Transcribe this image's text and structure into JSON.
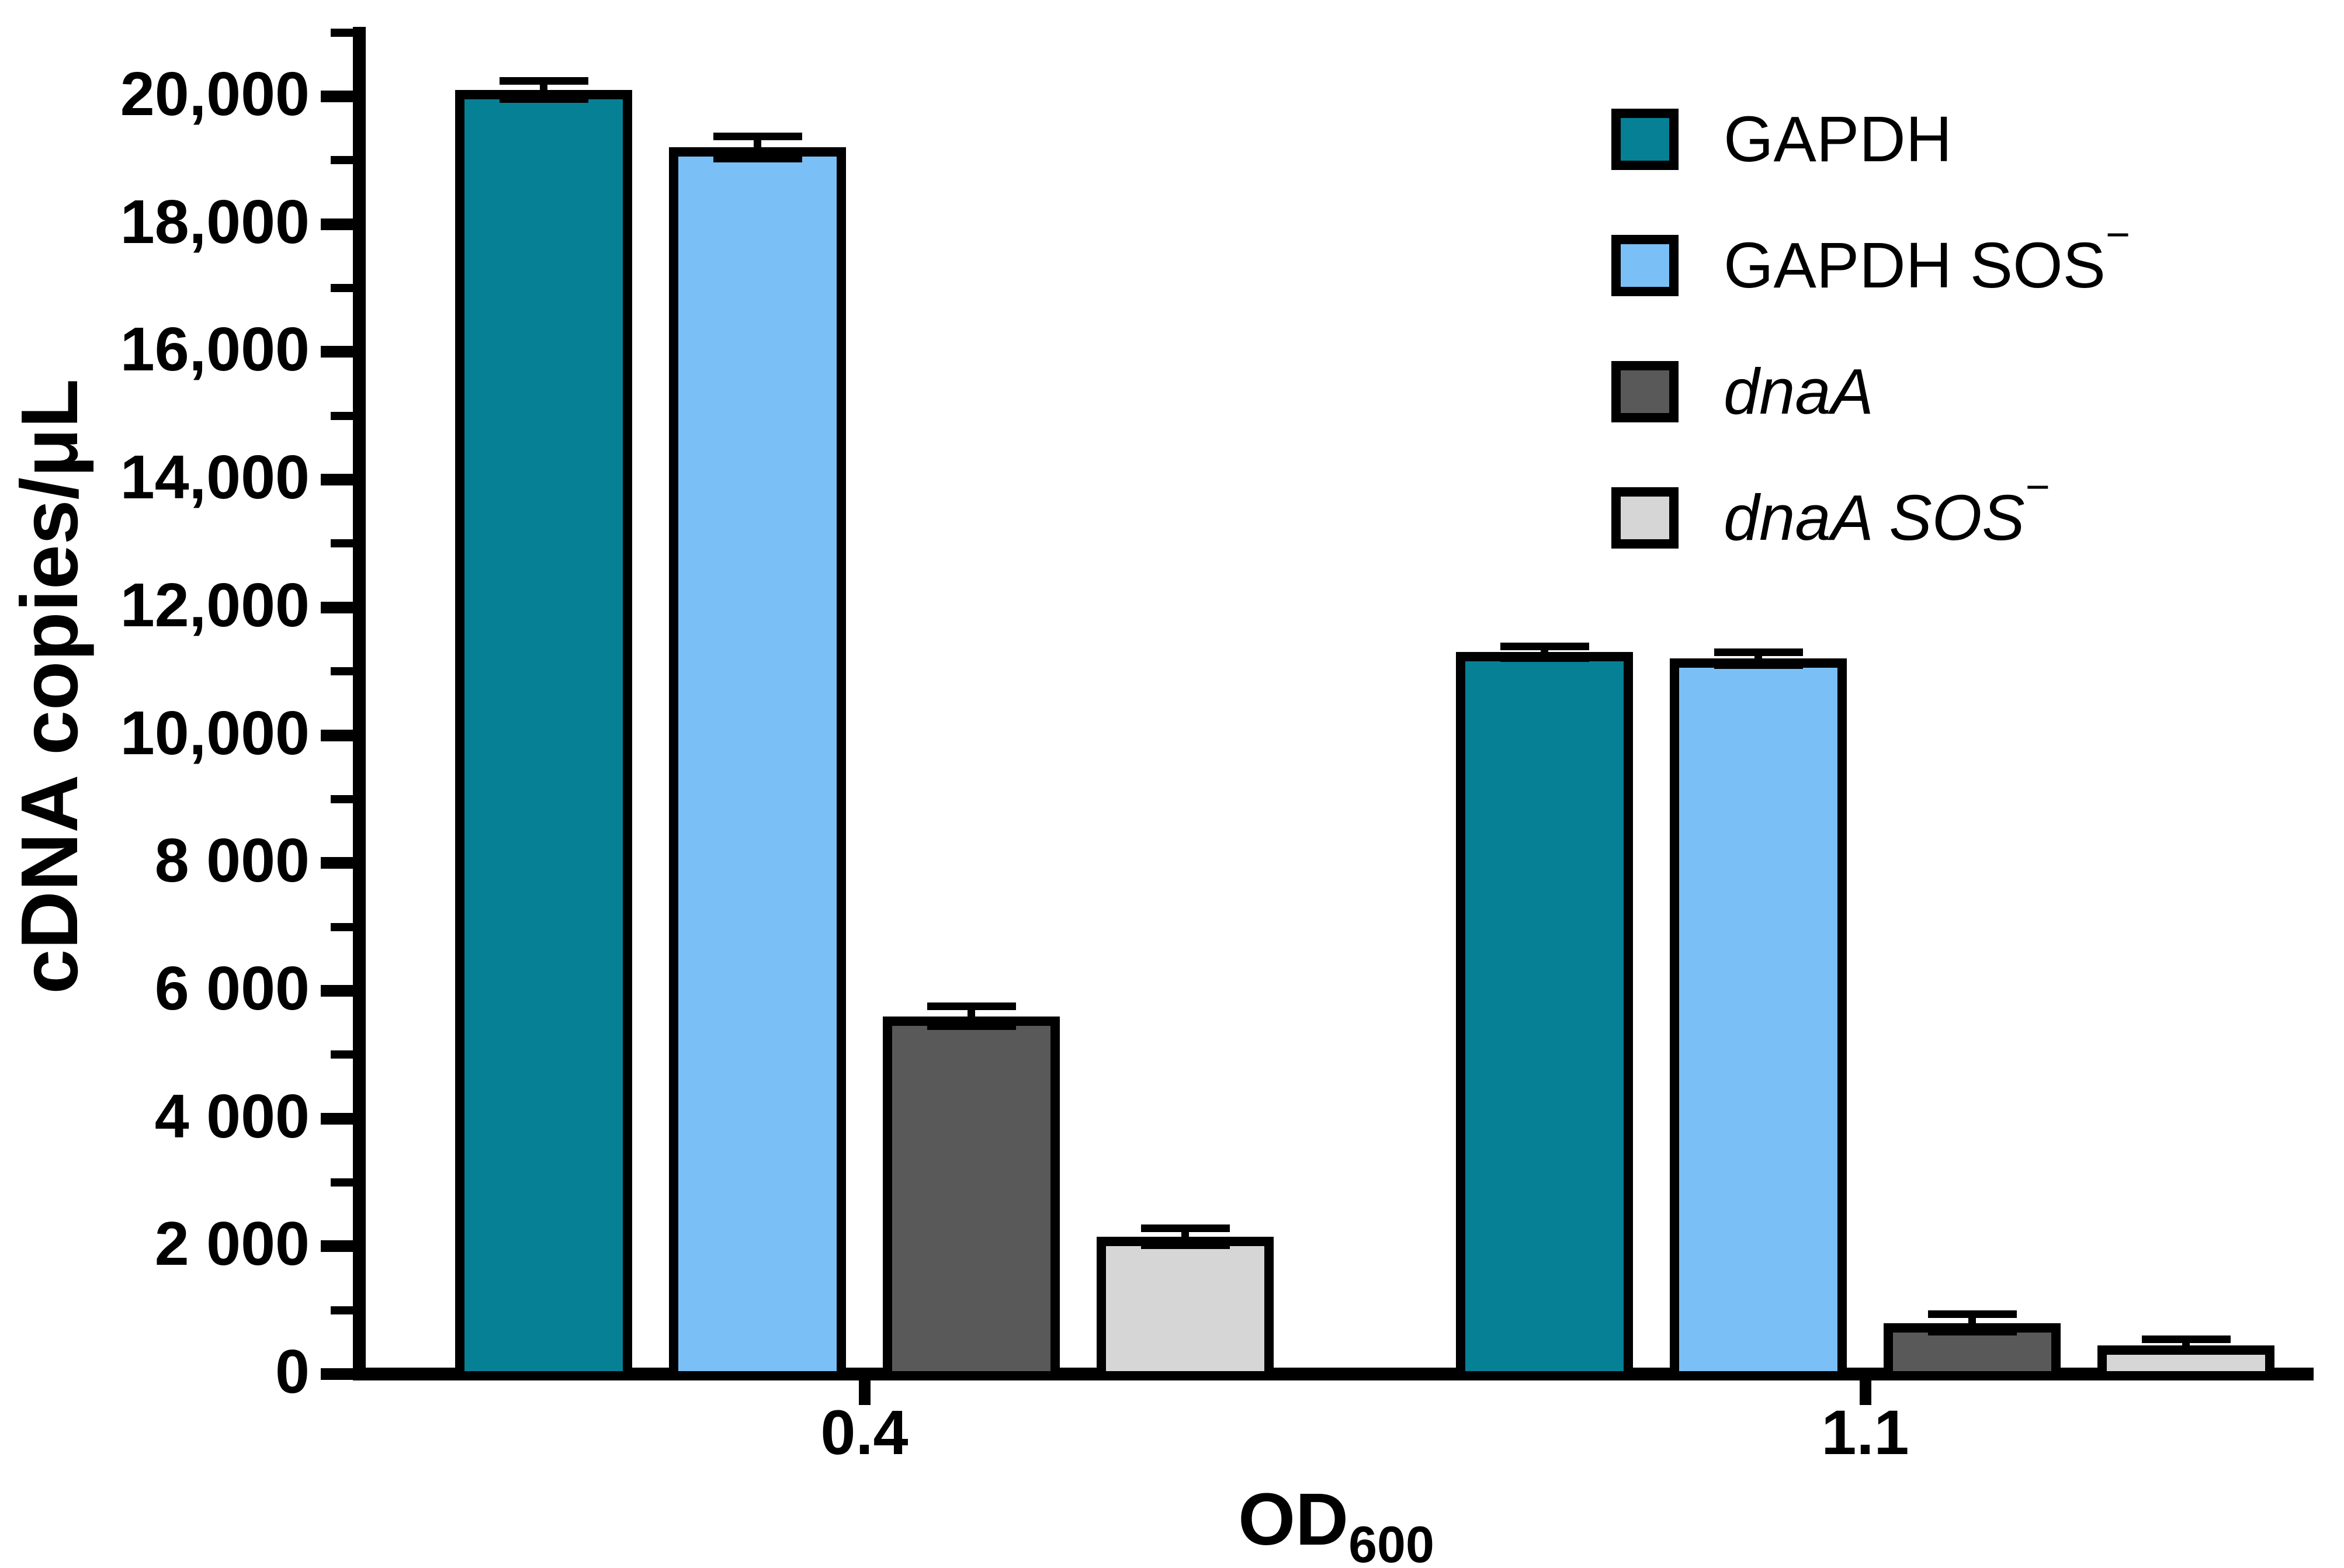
{
  "figure": {
    "background_color": "#FFFFFF"
  },
  "chart_data": {
    "type": "bar",
    "title": "",
    "ylabel": "cDNA copies/μL",
    "xlabel": "OD600",
    "xlabel_base": "OD",
    "xlabel_subscript": "600",
    "categories": [
      "0.4",
      "1.1"
    ],
    "series": [
      {
        "name": "GAPDH",
        "label": "GAPDH",
        "label_superscript": "",
        "italic": false,
        "color": "#068095",
        "values": [
          20100,
          11300
        ],
        "errors": [
          200,
          150
        ]
      },
      {
        "name": "GAPDH SOS−",
        "label": "GAPDH SOS",
        "label_superscript": "−",
        "italic": false,
        "color": "#7AC0F6",
        "values": [
          19200,
          11200
        ],
        "errors": [
          230,
          160
        ]
      },
      {
        "name": "dnaA",
        "label": "dnaA",
        "label_superscript": "",
        "italic": true,
        "color": "#595959",
        "values": [
          5600,
          800
        ],
        "errors": [
          215,
          200
        ]
      },
      {
        "name": "dnaA SOS−",
        "label": "dnaA SOS",
        "label_superscript": "−",
        "italic": true,
        "color": "#D6D6D6",
        "values": [
          2150,
          450
        ],
        "errors": [
          190,
          150
        ]
      }
    ],
    "ylim": [
      0,
      21000
    ],
    "y_major_ticks": [
      0,
      2000,
      4000,
      6000,
      8000,
      10000,
      12000,
      14000,
      16000,
      18000,
      20000
    ],
    "y_tick_labels": [
      "0",
      "2 000",
      "4 000",
      "6 000",
      "8 000",
      "10,000",
      "12,000",
      "14,000",
      "16,000",
      "18,000",
      "20,000"
    ],
    "y_minor_ticks": [
      1000,
      3000,
      5000,
      7000,
      9000,
      11000,
      13000,
      15000,
      17000,
      19000,
      21000
    ],
    "grid": false,
    "legend_position": "top-right",
    "error_bars": "both",
    "bar_outline_color": "#000000",
    "axis_color": "#000000"
  }
}
